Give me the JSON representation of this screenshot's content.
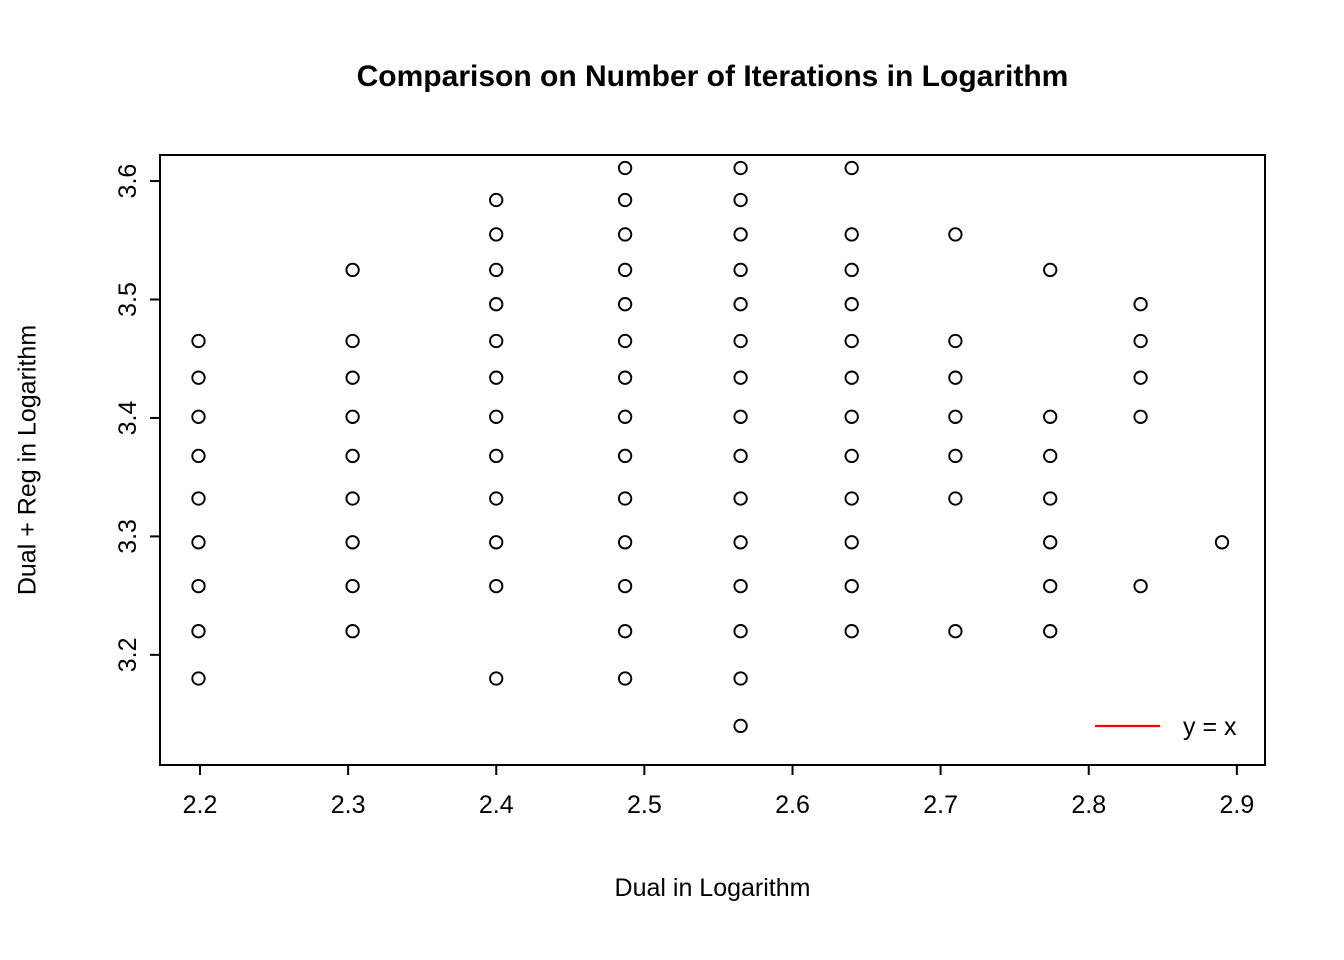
{
  "chart_data": {
    "type": "scatter",
    "title": "Comparison on Number of Iterations in Logarithm",
    "xlabel": "Dual in Logarithm",
    "ylabel": "Dual + Reg in Logarithm",
    "xlim": [
      2.173,
      2.919
    ],
    "ylim": [
      3.107,
      3.622
    ],
    "x_ticks": [
      2.2,
      2.3,
      2.4,
      2.5,
      2.6,
      2.7,
      2.8,
      2.9
    ],
    "y_ticks": [
      3.2,
      3.3,
      3.4,
      3.5,
      3.6
    ],
    "grid": false,
    "marker": "open-circle",
    "marker_color": "#000000",
    "legend": {
      "label": "y = x",
      "line_color": "#FF0000",
      "position": "bottom-right"
    },
    "points": [
      [
        2.199,
        3.465
      ],
      [
        2.199,
        3.434
      ],
      [
        2.199,
        3.401
      ],
      [
        2.199,
        3.368
      ],
      [
        2.199,
        3.332
      ],
      [
        2.199,
        3.295
      ],
      [
        2.199,
        3.258
      ],
      [
        2.199,
        3.22
      ],
      [
        2.199,
        3.18
      ],
      [
        2.303,
        3.525
      ],
      [
        2.303,
        3.465
      ],
      [
        2.303,
        3.434
      ],
      [
        2.303,
        3.401
      ],
      [
        2.303,
        3.368
      ],
      [
        2.303,
        3.332
      ],
      [
        2.303,
        3.295
      ],
      [
        2.303,
        3.258
      ],
      [
        2.303,
        3.22
      ],
      [
        2.4,
        3.584
      ],
      [
        2.4,
        3.555
      ],
      [
        2.4,
        3.525
      ],
      [
        2.4,
        3.496
      ],
      [
        2.4,
        3.465
      ],
      [
        2.4,
        3.434
      ],
      [
        2.4,
        3.401
      ],
      [
        2.4,
        3.368
      ],
      [
        2.4,
        3.332
      ],
      [
        2.4,
        3.295
      ],
      [
        2.4,
        3.258
      ],
      [
        2.4,
        3.18
      ],
      [
        2.487,
        3.611
      ],
      [
        2.487,
        3.584
      ],
      [
        2.487,
        3.555
      ],
      [
        2.487,
        3.525
      ],
      [
        2.487,
        3.496
      ],
      [
        2.487,
        3.465
      ],
      [
        2.487,
        3.434
      ],
      [
        2.487,
        3.401
      ],
      [
        2.487,
        3.368
      ],
      [
        2.487,
        3.332
      ],
      [
        2.487,
        3.295
      ],
      [
        2.487,
        3.258
      ],
      [
        2.487,
        3.22
      ],
      [
        2.487,
        3.18
      ],
      [
        2.565,
        3.611
      ],
      [
        2.565,
        3.584
      ],
      [
        2.565,
        3.555
      ],
      [
        2.565,
        3.525
      ],
      [
        2.565,
        3.496
      ],
      [
        2.565,
        3.465
      ],
      [
        2.565,
        3.434
      ],
      [
        2.565,
        3.401
      ],
      [
        2.565,
        3.368
      ],
      [
        2.565,
        3.332
      ],
      [
        2.565,
        3.295
      ],
      [
        2.565,
        3.258
      ],
      [
        2.565,
        3.22
      ],
      [
        2.565,
        3.18
      ],
      [
        2.565,
        3.14
      ],
      [
        2.64,
        3.611
      ],
      [
        2.64,
        3.555
      ],
      [
        2.64,
        3.525
      ],
      [
        2.64,
        3.496
      ],
      [
        2.64,
        3.465
      ],
      [
        2.64,
        3.434
      ],
      [
        2.64,
        3.401
      ],
      [
        2.64,
        3.368
      ],
      [
        2.64,
        3.332
      ],
      [
        2.64,
        3.295
      ],
      [
        2.64,
        3.258
      ],
      [
        2.64,
        3.22
      ],
      [
        2.71,
        3.555
      ],
      [
        2.71,
        3.465
      ],
      [
        2.71,
        3.434
      ],
      [
        2.71,
        3.401
      ],
      [
        2.71,
        3.368
      ],
      [
        2.71,
        3.332
      ],
      [
        2.71,
        3.22
      ],
      [
        2.774,
        3.525
      ],
      [
        2.774,
        3.401
      ],
      [
        2.774,
        3.368
      ],
      [
        2.774,
        3.332
      ],
      [
        2.774,
        3.295
      ],
      [
        2.774,
        3.258
      ],
      [
        2.774,
        3.22
      ],
      [
        2.835,
        3.496
      ],
      [
        2.835,
        3.465
      ],
      [
        2.835,
        3.434
      ],
      [
        2.835,
        3.401
      ],
      [
        2.835,
        3.258
      ],
      [
        2.89,
        3.295
      ]
    ]
  }
}
